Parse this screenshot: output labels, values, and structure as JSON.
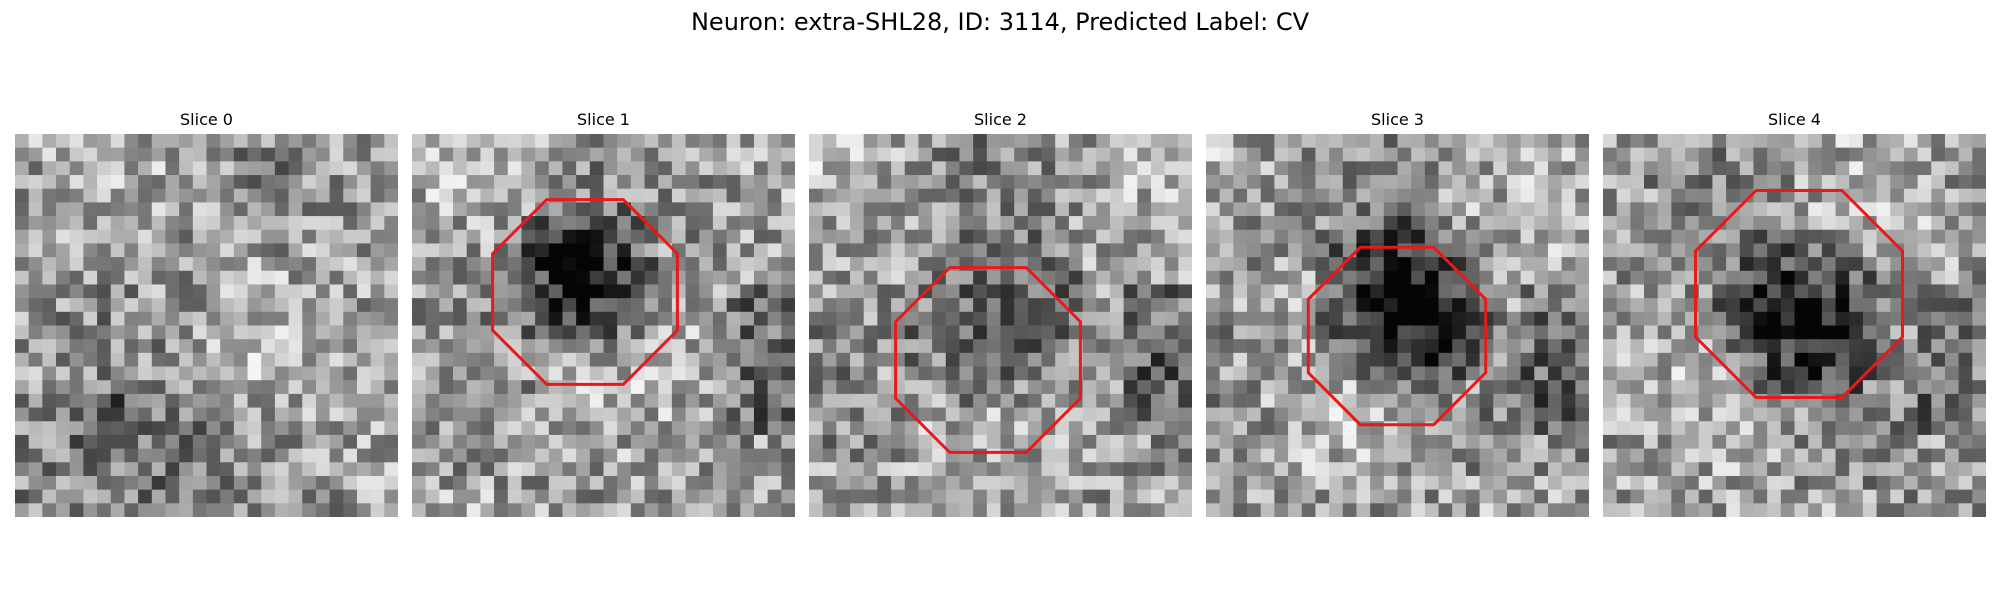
{
  "figure": {
    "title": "Neuron: extra-SHL28, ID: 3114, Predicted Label: CV"
  },
  "slices": [
    {
      "title": "Slice 0",
      "outline": false,
      "blob": null
    },
    {
      "title": "Slice 1",
      "outline": true,
      "blob": "center"
    },
    {
      "title": "Slice 2",
      "outline": true,
      "blob": "speckle"
    },
    {
      "title": "Slice 3",
      "outline": true,
      "blob": "center-dark"
    },
    {
      "title": "Slice 4",
      "outline": true,
      "blob": "lower-dark"
    }
  ],
  "colors": {
    "outline": "#e8191a",
    "background": "#ffffff"
  },
  "image": {
    "type": "grayscale pixel grid",
    "grid_size": 28
  }
}
